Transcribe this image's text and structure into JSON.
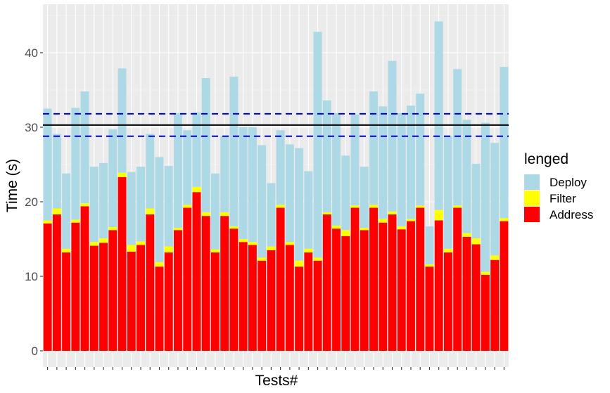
{
  "chart_data": {
    "type": "bar",
    "stacked": true,
    "xlabel": "Tests#",
    "ylabel": "Time (s)",
    "ylim": [
      0,
      45
    ],
    "yticks": [
      0,
      10,
      20,
      30,
      40
    ],
    "grid": true,
    "legend": {
      "title": "lenged",
      "placement": "right",
      "items": [
        {
          "name": "Deploy",
          "color": "#add8e6"
        },
        {
          "name": "Filter",
          "color": "#ffff00"
        },
        {
          "name": "Address",
          "color": "#ff0000"
        }
      ]
    },
    "series": [
      {
        "name": "Address",
        "color": "#ff0000",
        "values": [
          17.1,
          18.3,
          13.2,
          17.2,
          19.4,
          14.1,
          14.5,
          16.2,
          23.3,
          13.3,
          14.2,
          18.3,
          11.3,
          13.2,
          16.2,
          19.2,
          21.3,
          18.1,
          13.2,
          18.1,
          16.4,
          14.6,
          14.2,
          12.1,
          13.5,
          19.2,
          14.2,
          11.3,
          13.2,
          12.1,
          18.3,
          16.4,
          15.4,
          19.2,
          16.2,
          19.2,
          17.2,
          18.3,
          16.3,
          17.4,
          19.2,
          11.3,
          17.5,
          13.2,
          19.2,
          15.3,
          14.3,
          10.2,
          12.2,
          17.4
        ]
      },
      {
        "name": "Filter",
        "color": "#ffff00",
        "values": [
          0.4,
          0.8,
          0.5,
          0.4,
          0.4,
          0.5,
          0.6,
          0.4,
          0.6,
          0.9,
          0.5,
          0.8,
          0.6,
          0.8,
          0.3,
          0.4,
          0.7,
          0.5,
          0.4,
          0.5,
          0.3,
          0.4,
          0.4,
          0.4,
          0.5,
          0.4,
          0.4,
          0.8,
          0.5,
          0.4,
          0.3,
          0.4,
          0.8,
          0.3,
          0.3,
          0.4,
          0.5,
          0.4,
          0.4,
          0.3,
          0.3,
          0.3,
          1.4,
          0.5,
          0.3,
          0.5,
          0.8,
          0.4,
          0.6,
          0.4
        ]
      },
      {
        "name": "Deploy",
        "color": "#add8e6",
        "values": [
          15.0,
          10.0,
          10.1,
          15.0,
          15.0,
          10.1,
          10.1,
          13.1,
          14.0,
          9.8,
          10.0,
          10.0,
          14.1,
          10.8,
          15.4,
          10.0,
          10.0,
          18.0,
          10.2,
          10.2,
          20.1,
          15.0,
          15.4,
          15.1,
          8.5,
          10.0,
          13.1,
          15.1,
          10.4,
          30.3,
          15.0,
          15.1,
          10.0,
          12.2,
          8.2,
          15.2,
          15.1,
          20.2,
          15.2,
          15.2,
          15.0,
          5.1,
          25.3,
          15.1,
          18.3,
          15.2,
          10.0,
          20.0,
          15.1,
          20.3
        ]
      }
    ],
    "reference_lines": [
      {
        "y": 30.3,
        "style": "solid",
        "color": "#000000"
      },
      {
        "y": 31.8,
        "style": "dashed",
        "color": "#0000cd"
      },
      {
        "y": 28.8,
        "style": "dashed",
        "color": "#0000cd"
      }
    ]
  }
}
